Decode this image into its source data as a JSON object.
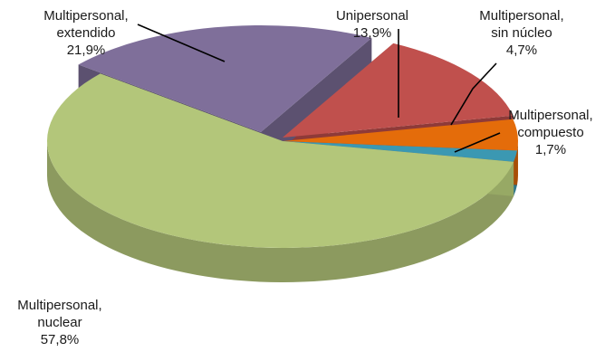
{
  "chart_data": {
    "type": "pie",
    "title": "",
    "legend": "none",
    "style": "3d-exploded",
    "slices": [
      {
        "label": [
          "Multipersonal,",
          "nuclear"
        ],
        "value": 57.8,
        "display": "57,8%",
        "color": "#b3c67a"
      },
      {
        "label": [
          "Multipersonal,",
          "extendido"
        ],
        "value": 21.9,
        "display": "21,9%",
        "color": "#7f6f9a"
      },
      {
        "label": [
          "Unipersonal"
        ],
        "value": 13.9,
        "display": "13,9%",
        "color": "#c0504d"
      },
      {
        "label": [
          "Multipersonal,",
          "sin núcleo"
        ],
        "value": 4.7,
        "display": "4,7%",
        "color": "#e46c0a"
      },
      {
        "label": [
          "Multipersonal,",
          "compuesto"
        ],
        "value": 1.7,
        "display": "1,7%",
        "color": "#3b98b2"
      }
    ]
  }
}
